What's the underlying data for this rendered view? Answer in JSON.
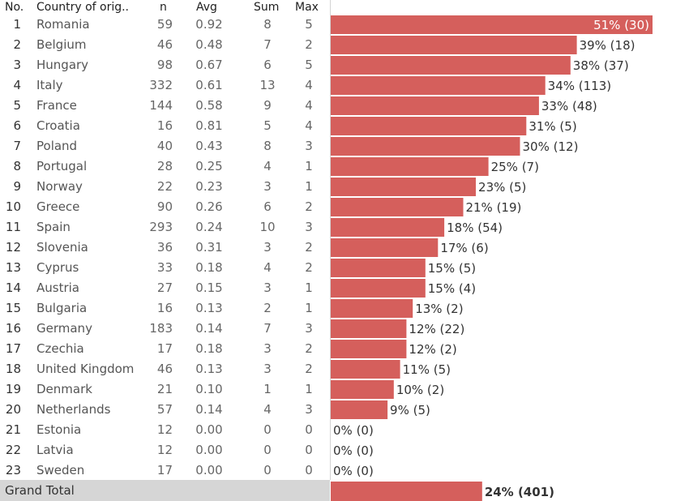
{
  "headers": {
    "no": "No.",
    "country": "Country of orig..",
    "n": "n",
    "avg": "Avg",
    "sum": "Sum",
    "max": "Max"
  },
  "colors": {
    "bar": "#d55f5c",
    "grand_total_bg": "#d6d6d6"
  },
  "chart_data": {
    "type": "bar",
    "orientation": "horizontal",
    "xlim": [
      0,
      0.51
    ],
    "rows": [
      {
        "no": "1",
        "country": "Romania",
        "n": "59",
        "avg": "0.92",
        "sum": "8",
        "max": "5",
        "pct": 0.51,
        "label": "51% (30)"
      },
      {
        "no": "2",
        "country": "Belgium",
        "n": "46",
        "avg": "0.48",
        "sum": "7",
        "max": "2",
        "pct": 0.39,
        "label": "39% (18)"
      },
      {
        "no": "3",
        "country": "Hungary",
        "n": "98",
        "avg": "0.67",
        "sum": "6",
        "max": "5",
        "pct": 0.38,
        "label": "38% (37)"
      },
      {
        "no": "4",
        "country": "Italy",
        "n": "332",
        "avg": "0.61",
        "sum": "13",
        "max": "4",
        "pct": 0.34,
        "label": "34% (113)"
      },
      {
        "no": "5",
        "country": "France",
        "n": "144",
        "avg": "0.58",
        "sum": "9",
        "max": "4",
        "pct": 0.33,
        "label": "33% (48)"
      },
      {
        "no": "6",
        "country": "Croatia",
        "n": "16",
        "avg": "0.81",
        "sum": "5",
        "max": "4",
        "pct": 0.31,
        "label": "31% (5)"
      },
      {
        "no": "7",
        "country": "Poland",
        "n": "40",
        "avg": "0.43",
        "sum": "8",
        "max": "3",
        "pct": 0.3,
        "label": "30% (12)"
      },
      {
        "no": "8",
        "country": "Portugal",
        "n": "28",
        "avg": "0.25",
        "sum": "4",
        "max": "1",
        "pct": 0.25,
        "label": "25% (7)"
      },
      {
        "no": "9",
        "country": "Norway",
        "n": "22",
        "avg": "0.23",
        "sum": "3",
        "max": "1",
        "pct": 0.23,
        "label": "23% (5)"
      },
      {
        "no": "10",
        "country": "Greece",
        "n": "90",
        "avg": "0.26",
        "sum": "6",
        "max": "2",
        "pct": 0.21,
        "label": "21% (19)"
      },
      {
        "no": "11",
        "country": "Spain",
        "n": "293",
        "avg": "0.24",
        "sum": "10",
        "max": "3",
        "pct": 0.18,
        "label": "18% (54)"
      },
      {
        "no": "12",
        "country": "Slovenia",
        "n": "36",
        "avg": "0.31",
        "sum": "3",
        "max": "2",
        "pct": 0.17,
        "label": "17% (6)"
      },
      {
        "no": "13",
        "country": "Cyprus",
        "n": "33",
        "avg": "0.18",
        "sum": "4",
        "max": "2",
        "pct": 0.15,
        "label": "15% (5)"
      },
      {
        "no": "14",
        "country": "Austria",
        "n": "27",
        "avg": "0.15",
        "sum": "3",
        "max": "1",
        "pct": 0.15,
        "label": "15% (4)"
      },
      {
        "no": "15",
        "country": "Bulgaria",
        "n": "16",
        "avg": "0.13",
        "sum": "2",
        "max": "1",
        "pct": 0.13,
        "label": "13% (2)"
      },
      {
        "no": "16",
        "country": "Germany",
        "n": "183",
        "avg": "0.14",
        "sum": "7",
        "max": "3",
        "pct": 0.12,
        "label": "12% (22)"
      },
      {
        "no": "17",
        "country": "Czechia",
        "n": "17",
        "avg": "0.18",
        "sum": "3",
        "max": "2",
        "pct": 0.12,
        "label": "12% (2)"
      },
      {
        "no": "18",
        "country": "United Kingdom",
        "n": "46",
        "avg": "0.13",
        "sum": "3",
        "max": "2",
        "pct": 0.11,
        "label": "11% (5)"
      },
      {
        "no": "19",
        "country": "Denmark",
        "n": "21",
        "avg": "0.10",
        "sum": "1",
        "max": "1",
        "pct": 0.1,
        "label": "10% (2)"
      },
      {
        "no": "20",
        "country": "Netherlands",
        "n": "57",
        "avg": "0.14",
        "sum": "4",
        "max": "3",
        "pct": 0.09,
        "label": "9% (5)"
      },
      {
        "no": "21",
        "country": "Estonia",
        "n": "12",
        "avg": "0.00",
        "sum": "0",
        "max": "0",
        "pct": 0.0,
        "label": "0% (0)"
      },
      {
        "no": "22",
        "country": "Latvia",
        "n": "12",
        "avg": "0.00",
        "sum": "0",
        "max": "0",
        "pct": 0.0,
        "label": "0% (0)"
      },
      {
        "no": "23",
        "country": "Sweden",
        "n": "17",
        "avg": "0.00",
        "sum": "0",
        "max": "0",
        "pct": 0.0,
        "label": "0% (0)"
      }
    ],
    "grand_total": {
      "label": "Grand Total",
      "pct": 0.24,
      "value_label": "24% (401)"
    }
  }
}
